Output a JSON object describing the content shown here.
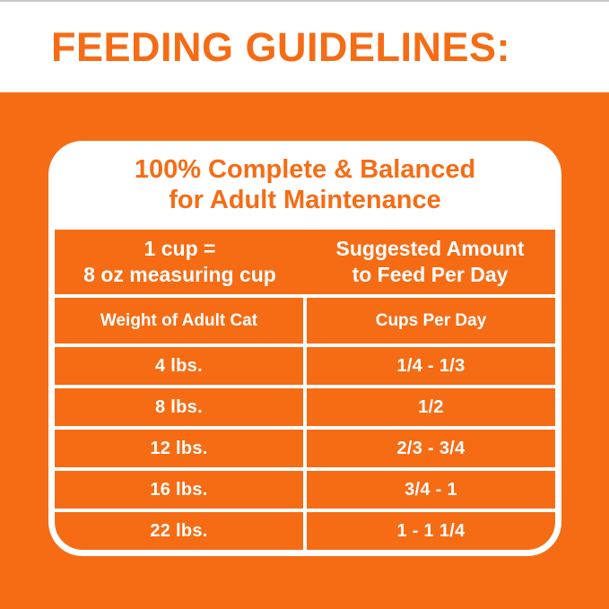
{
  "page_title": "FEEDING GUIDELINES:",
  "colors": {
    "brand_orange": "#F56C15",
    "text_on_orange": "#FFFFFF",
    "header_text": "#F56C15"
  },
  "card": {
    "title_line1": "100% Complete & Balanced",
    "title_line2": "for Adult Maintenance",
    "header": {
      "left_line1": "1 cup =",
      "left_line2": "8 oz measuring cup",
      "right_line1": "Suggested Amount",
      "right_line2": "to Feed Per Day"
    },
    "columns": [
      "Weight of Adult Cat",
      "Cups Per Day"
    ],
    "rows": [
      {
        "weight": "4 lbs.",
        "cups": "1/4 - 1/3"
      },
      {
        "weight": "8 lbs.",
        "cups": "1/2"
      },
      {
        "weight": "12 lbs.",
        "cups": "2/3 - 3/4"
      },
      {
        "weight": "16 lbs.",
        "cups": "3/4 - 1"
      },
      {
        "weight": "22 lbs.",
        "cups": "1 - 1 1/4"
      }
    ]
  }
}
